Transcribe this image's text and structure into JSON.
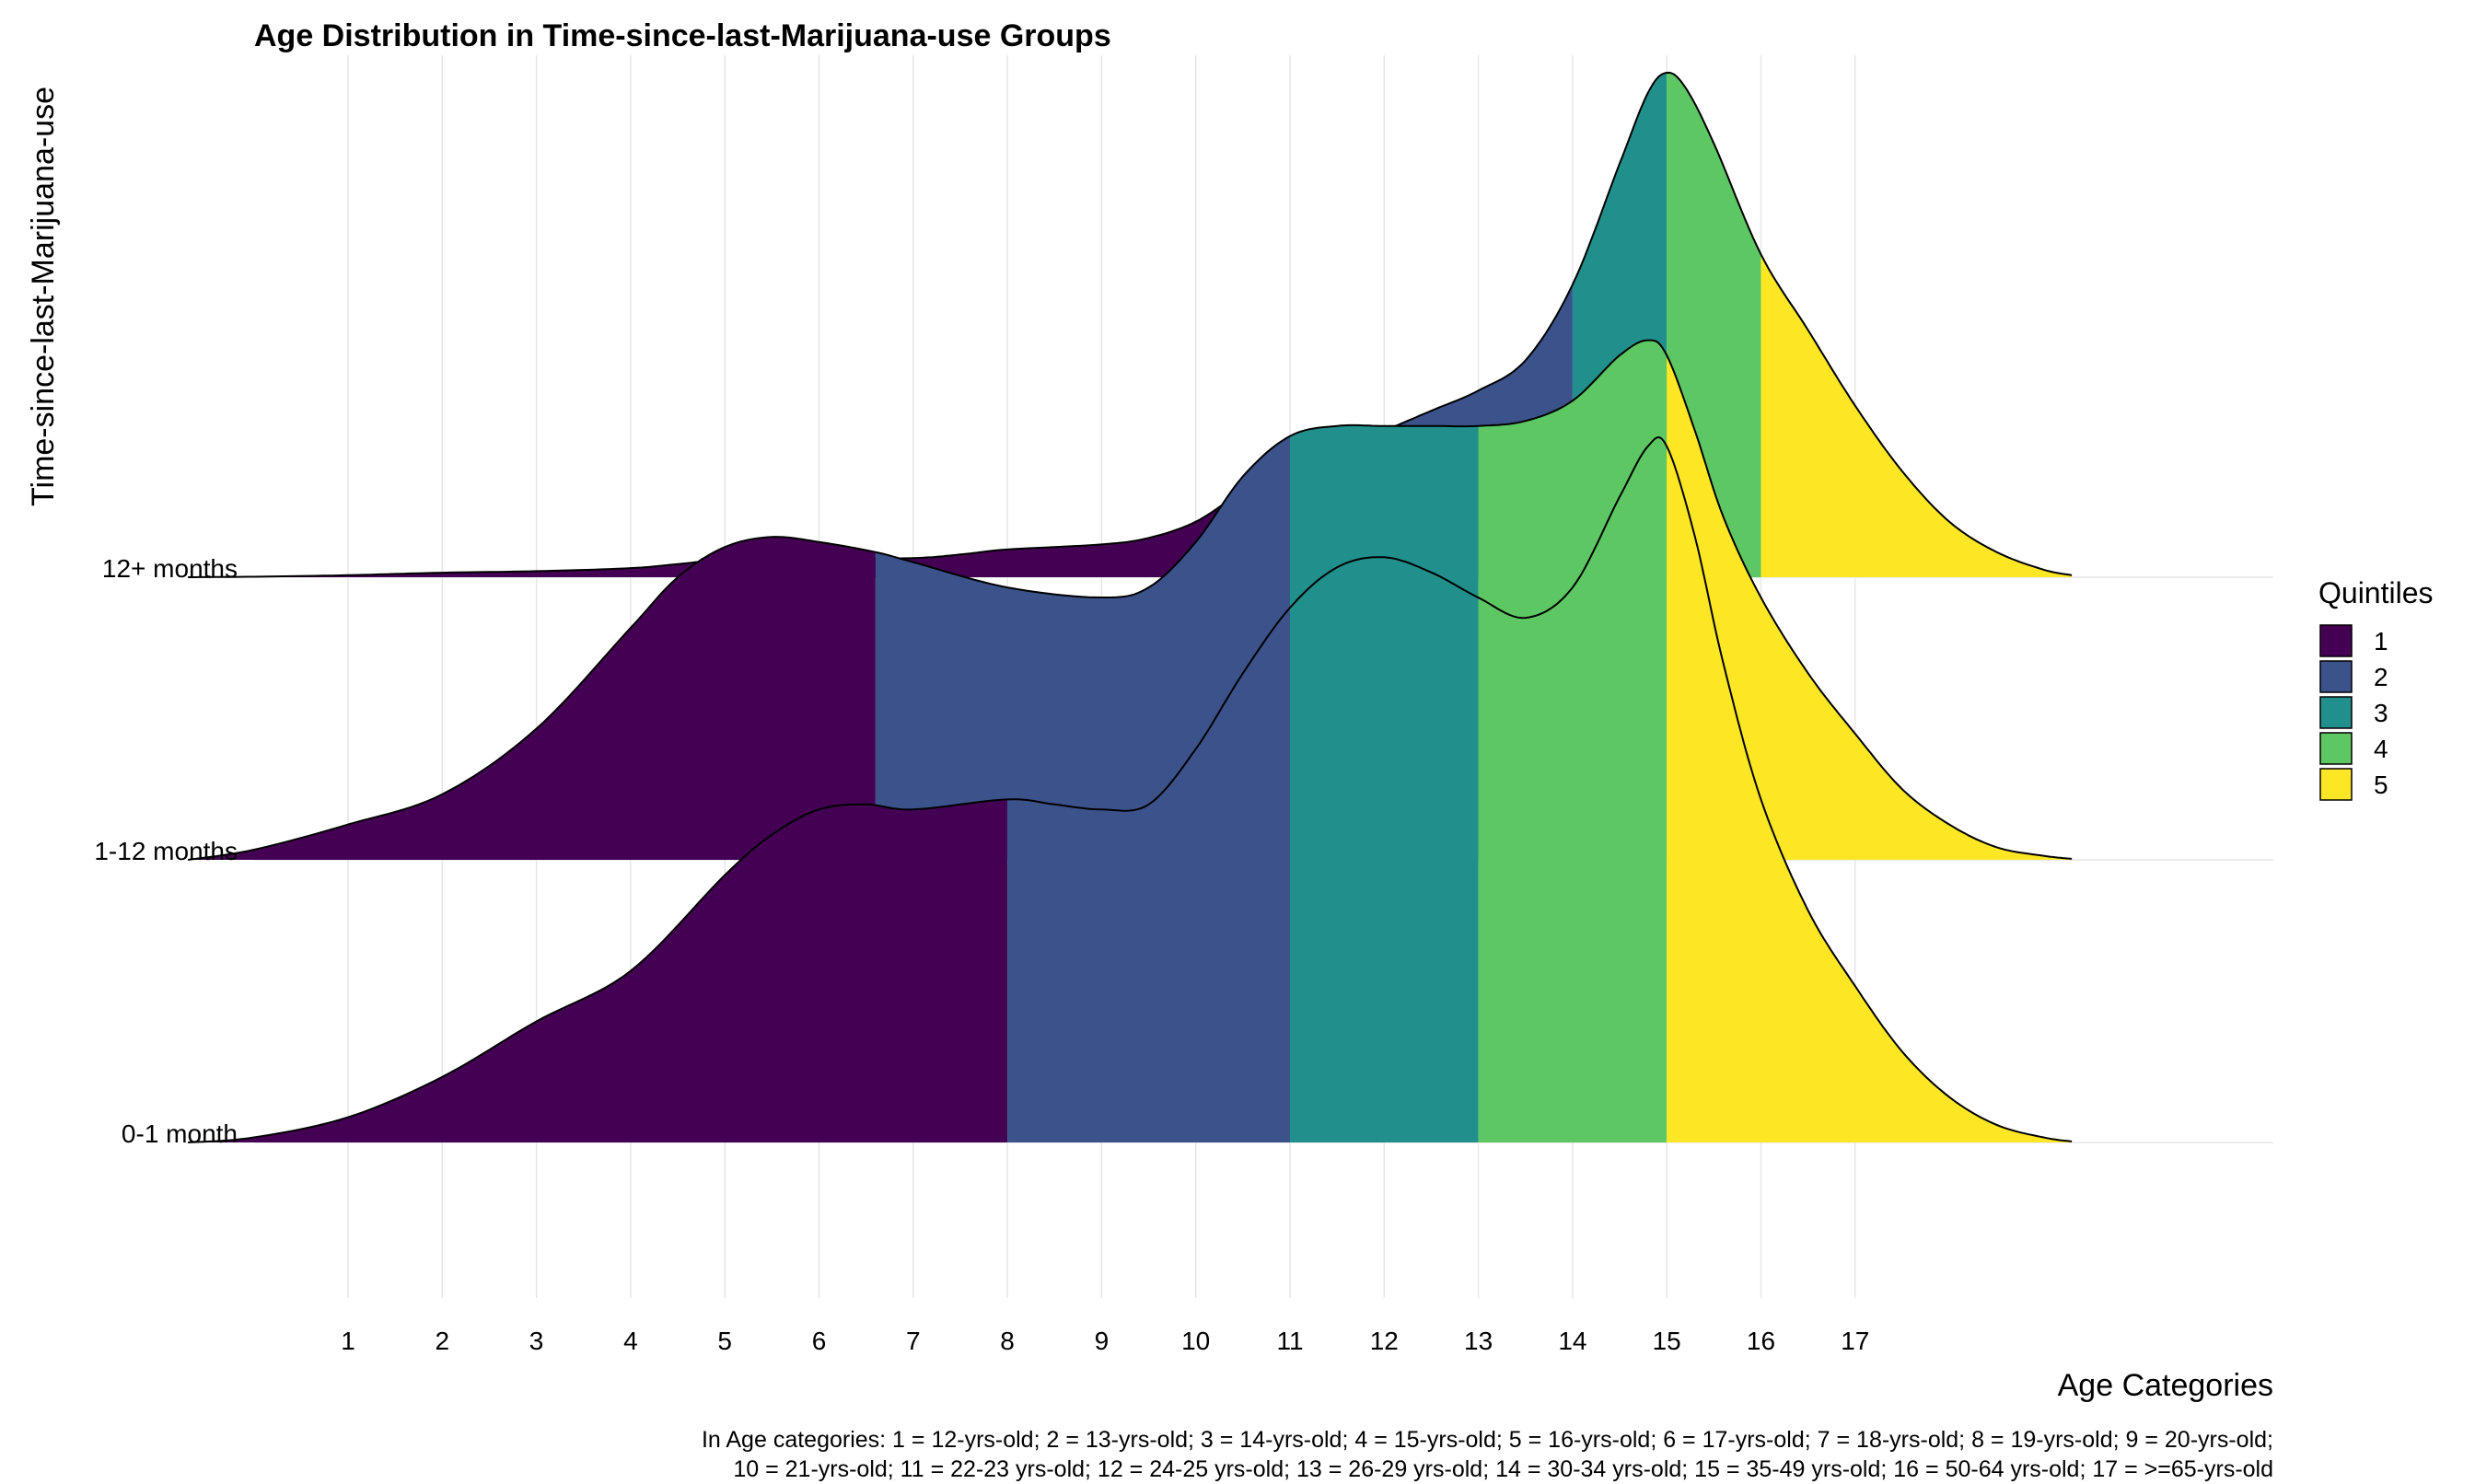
{
  "chart_data": {
    "type": "area",
    "subtype": "ridgeline-density",
    "title": "Age Distribution in Time-since-last-Marijuana-use Groups",
    "xlabel": "Age Categories",
    "ylabel": "Time-since-last-Marijuana-use",
    "x_ticks": [
      1,
      2,
      3,
      4,
      5,
      6,
      7,
      8,
      9,
      10,
      11,
      12,
      13,
      14,
      15,
      16,
      17
    ],
    "xlim": [
      -0.7,
      19.7
    ],
    "grid": true,
    "legend": {
      "title": "Quintiles",
      "position": "right",
      "entries": [
        "1",
        "2",
        "3",
        "4",
        "5"
      ]
    },
    "colors": [
      "#440154",
      "#3B528B",
      "#21908C",
      "#5DC863",
      "#FDE725"
    ],
    "series": [
      {
        "name": "12+ months",
        "quintile_cuts": [
          12,
          14,
          15,
          16
        ],
        "x": [
          -0.7,
          0,
          1,
          2,
          3,
          4,
          4.5,
          5,
          6,
          7,
          7.5,
          8,
          9,
          9.5,
          10,
          10.5,
          11,
          11.5,
          12,
          12.5,
          13,
          13.5,
          14,
          14.5,
          14.8,
          15,
          15.2,
          15.5,
          16,
          16.5,
          17,
          17.5,
          18,
          18.5,
          19,
          19.3
        ],
        "density": [
          0,
          0.001,
          0.004,
          0.009,
          0.012,
          0.018,
          0.026,
          0.034,
          0.036,
          0.038,
          0.045,
          0.055,
          0.065,
          0.078,
          0.11,
          0.17,
          0.215,
          0.25,
          0.29,
          0.33,
          0.37,
          0.43,
          0.58,
          0.82,
          0.96,
          1.0,
          0.97,
          0.86,
          0.64,
          0.49,
          0.34,
          0.21,
          0.11,
          0.05,
          0.015,
          0.004
        ]
      },
      {
        "name": "1-12 months",
        "quintile_cuts": [
          6.6,
          11,
          13,
          15
        ],
        "x": [
          -0.7,
          0,
          1,
          2,
          3,
          4,
          4.5,
          5,
          5.5,
          6,
          6.6,
          7,
          8,
          9,
          9.5,
          10,
          10.5,
          11,
          11.5,
          12,
          12.5,
          13,
          13.5,
          14,
          14.5,
          14.8,
          15,
          15.3,
          15.6,
          16,
          16.5,
          17,
          17.5,
          18,
          18.5,
          19,
          19.3
        ],
        "density": [
          0,
          0.02,
          0.07,
          0.13,
          0.26,
          0.46,
          0.56,
          0.62,
          0.64,
          0.63,
          0.61,
          0.59,
          0.54,
          0.52,
          0.54,
          0.63,
          0.76,
          0.84,
          0.86,
          0.86,
          0.86,
          0.86,
          0.87,
          0.91,
          1.0,
          1.03,
          1.0,
          0.85,
          0.68,
          0.52,
          0.37,
          0.25,
          0.14,
          0.07,
          0.025,
          0.008,
          0.002
        ]
      },
      {
        "name": "0-1 month",
        "quintile_cuts": [
          8,
          11,
          13,
          15
        ],
        "x": [
          -0.7,
          0,
          1,
          2,
          3,
          4,
          5,
          5.5,
          6,
          6.5,
          7,
          8,
          8.5,
          9,
          9.5,
          10,
          10.5,
          11,
          11.5,
          12,
          12.5,
          13,
          13.5,
          14,
          14.5,
          14.8,
          15,
          15.3,
          15.6,
          16,
          16.5,
          17,
          17.5,
          18,
          18.5,
          19,
          19.3
        ],
        "density": [
          0,
          0.01,
          0.05,
          0.13,
          0.24,
          0.34,
          0.53,
          0.61,
          0.66,
          0.67,
          0.66,
          0.68,
          0.67,
          0.66,
          0.67,
          0.78,
          0.93,
          1.06,
          1.14,
          1.16,
          1.13,
          1.08,
          1.04,
          1.1,
          1.28,
          1.38,
          1.38,
          1.2,
          0.95,
          0.68,
          0.46,
          0.31,
          0.18,
          0.09,
          0.035,
          0.01,
          0.002
        ]
      }
    ]
  },
  "caption": {
    "line1": "In Age categories: 1 = 12-yrs-old; 2 = 13-yrs-old; 3 = 14-yrs-old; 4 = 15-yrs-old; 5 = 16-yrs-old; 6 = 17-yrs-old; 7 = 18-yrs-old; 8 = 19-yrs-old; 9 = 20-yrs-old;",
    "line2": "10 = 21-yrs-old; 11 = 22-23 yrs-old; 12 = 24-25 yrs-old; 13 = 26-29 yrs-old; 14 = 30-34 yrs-old; 15 = 35-49 yrs-old; 16 = 50-64 yrs-old; 17 = >=65-yrs-old"
  }
}
